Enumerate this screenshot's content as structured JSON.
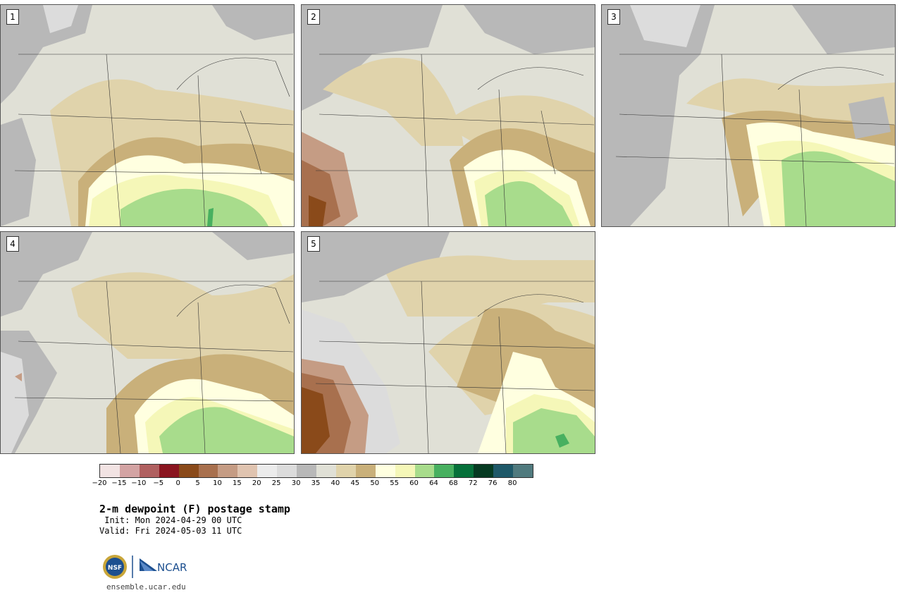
{
  "panels": [
    {
      "label": "1"
    },
    {
      "label": "2"
    },
    {
      "label": "3"
    },
    {
      "label": "4"
    },
    {
      "label": "5"
    }
  ],
  "colorbar": {
    "colors": [
      "#f2e3e3",
      "#d3a3a3",
      "#b06060",
      "#8a1520",
      "#8a4a1a",
      "#a8704e",
      "#c59c84",
      "#e0c4b0",
      "#ececec",
      "#dcdcdc",
      "#b8b8b8",
      "#e0e0d6",
      "#e0d3ab",
      "#c9b07a",
      "#ffffe0",
      "#f5f7b8",
      "#a8dc8c",
      "#48b060",
      "#06703a",
      "#063a22",
      "#1e5868",
      "#507a7e"
    ],
    "tick_labels": [
      "−20",
      "−15",
      "−10",
      "−5",
      "0",
      "5",
      "10",
      "15",
      "20",
      "25",
      "30",
      "35",
      "40",
      "45",
      "50",
      "55",
      "60",
      "64",
      "68",
      "72",
      "76",
      "80"
    ]
  },
  "title": "2-m dewpoint (F) postage stamp",
  "init": " Init: Mon 2024-04-29 00 UTC",
  "valid": "Valid: Fri 2024-05-03 11 UTC",
  "logos": {
    "nsf": "NSF",
    "ncar": "NCAR"
  },
  "website": "ensemble.ucar.edu"
}
